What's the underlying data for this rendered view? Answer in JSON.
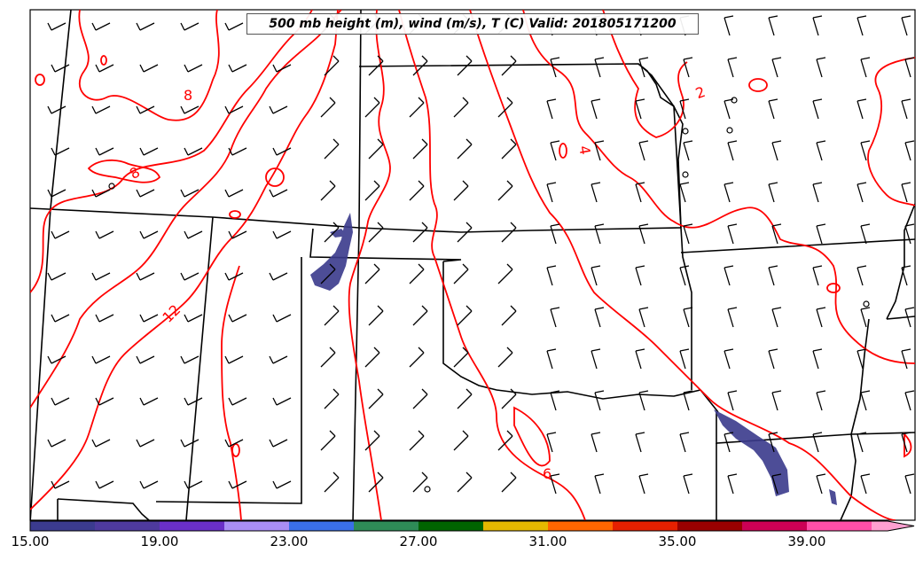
{
  "map": {
    "title": "500 mb height (m), wind (m/s), T (C) Valid: 201805171200",
    "contour_color": "#ff0000",
    "border_color": "#000000",
    "precip_color": "#3a3a8c",
    "contour_labels": [
      {
        "id": "label-8-a",
        "text": "8"
      },
      {
        "id": "label-8-b",
        "text": "8"
      },
      {
        "id": "label-12",
        "text": "12"
      },
      {
        "id": "label-2",
        "text": "2"
      },
      {
        "id": "label-4",
        "text": "4"
      },
      {
        "id": "label-6",
        "text": "6"
      }
    ]
  },
  "colorbar": {
    "ticks": [
      "15.00",
      "19.00",
      "23.00",
      "27.00",
      "31.00",
      "35.00",
      "39.00"
    ],
    "colors": [
      "#3b3b8f",
      "#4e3a9e",
      "#6a2fc8",
      "#a98ef5",
      "#3a6fe8",
      "#2e8b57",
      "#006400",
      "#e6b800",
      "#ff6600",
      "#e62000",
      "#990000",
      "#cc0055",
      "#ff4fa8",
      "#ffa0d0"
    ]
  }
}
